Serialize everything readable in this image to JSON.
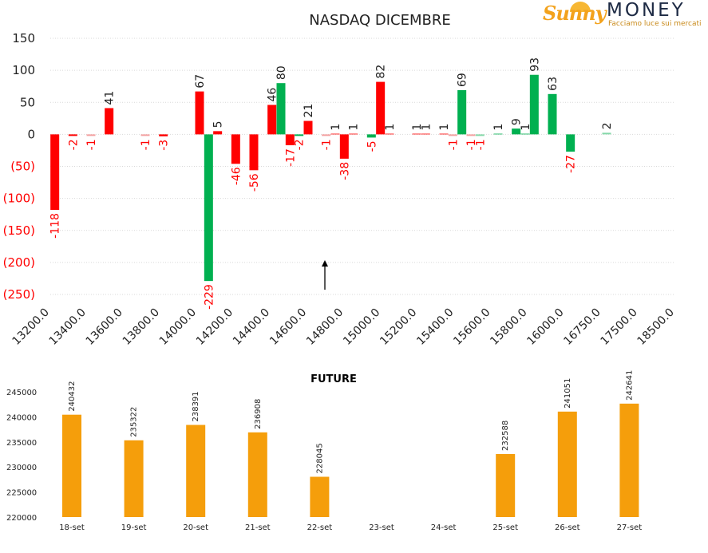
{
  "logo": {
    "brand_part1": "Sunny",
    "brand_part2": "MONEY",
    "tagline": "Facciamo luce sui mercati"
  },
  "colors": {
    "red": "#ff0000",
    "green": "#00b050",
    "light_red": "#f4a0a0",
    "light_green": "#84d8a8",
    "orange": "#f59e0b",
    "grid": "#d9d9d9"
  },
  "chart_data": [
    {
      "type": "bar",
      "title": "NASDAQ DICEMBRE",
      "xlabel": "",
      "ylabel": "",
      "ylim": [
        -250,
        150
      ],
      "yticks": [
        150,
        100,
        50,
        0,
        -50,
        -100,
        -150,
        -200,
        -250
      ],
      "ytick_labels": [
        "150",
        "100",
        "50",
        "0",
        "(50)",
        "(100)",
        "(150)",
        "(200)",
        "(250)"
      ],
      "categories": [
        "13200.0",
        "13400.0",
        "13600.0",
        "13800.0",
        "14000.0",
        "14200.0",
        "14400.0",
        "14600.0",
        "14800.0",
        "15000.0",
        "15200.0",
        "15400.0",
        "15600.0",
        "15800.0",
        "16000.0",
        "16750.0",
        "17500.0",
        "18500.0"
      ],
      "slot_count": 69,
      "grid": true,
      "annotation": "arrow pointing up near 14800",
      "bars": [
        {
          "slot": 0,
          "value": -118,
          "color": "red"
        },
        {
          "slot": 2,
          "value": -2,
          "color": "red"
        },
        {
          "slot": 4,
          "value": -1,
          "color": "light_red"
        },
        {
          "slot": 6,
          "value": 41,
          "color": "red"
        },
        {
          "slot": 10,
          "value": -1,
          "color": "light_red"
        },
        {
          "slot": 12,
          "value": -3,
          "color": "red"
        },
        {
          "slot": 16,
          "value": 67,
          "color": "red"
        },
        {
          "slot": 17,
          "value": -229,
          "color": "green"
        },
        {
          "slot": 18,
          "value": 5,
          "color": "red"
        },
        {
          "slot": 20,
          "value": -46,
          "color": "red"
        },
        {
          "slot": 22,
          "value": -56,
          "color": "red"
        },
        {
          "slot": 24,
          "value": 46,
          "color": "red"
        },
        {
          "slot": 25,
          "value": 80,
          "color": "green"
        },
        {
          "slot": 26,
          "value": -17,
          "color": "red"
        },
        {
          "slot": 27,
          "value": -2,
          "color": "green"
        },
        {
          "slot": 28,
          "value": 21,
          "color": "red"
        },
        {
          "slot": 30,
          "value": -1,
          "color": "light_red"
        },
        {
          "slot": 31,
          "value": 1,
          "color": "red"
        },
        {
          "slot": 32,
          "value": -38,
          "color": "red"
        },
        {
          "slot": 33,
          "value": 1,
          "color": "red"
        },
        {
          "slot": 35,
          "value": -5,
          "color": "green"
        },
        {
          "slot": 36,
          "value": 82,
          "color": "red"
        },
        {
          "slot": 37,
          "value": 1,
          "color": "red"
        },
        {
          "slot": 40,
          "value": 1,
          "color": "red"
        },
        {
          "slot": 41,
          "value": 1,
          "color": "red"
        },
        {
          "slot": 43,
          "value": 1,
          "color": "red"
        },
        {
          "slot": 44,
          "value": -1,
          "color": "light_red"
        },
        {
          "slot": 45,
          "value": 69,
          "color": "green"
        },
        {
          "slot": 46,
          "value": -1,
          "color": "light_red"
        },
        {
          "slot": 47,
          "value": -1,
          "color": "light_green"
        },
        {
          "slot": 49,
          "value": 1,
          "color": "green"
        },
        {
          "slot": 51,
          "value": 9,
          "color": "green"
        },
        {
          "slot": 52,
          "value": 1,
          "color": "green"
        },
        {
          "slot": 53,
          "value": 93,
          "color": "green"
        },
        {
          "slot": 55,
          "value": 63,
          "color": "green"
        },
        {
          "slot": 57,
          "value": -27,
          "color": "green"
        },
        {
          "slot": 61,
          "value": 2,
          "color": "light_green"
        }
      ]
    },
    {
      "type": "bar",
      "title": "FUTURE",
      "xlabel": "",
      "ylabel": "",
      "ylim": [
        220000,
        245000
      ],
      "yticks": [
        "245000",
        "240000",
        "235000",
        "230000",
        "225000",
        "220000"
      ],
      "categories": [
        "18-set",
        "19-set",
        "20-set",
        "21-set",
        "22-set",
        "23-set",
        "24-set",
        "25-set",
        "26-set",
        "27-set"
      ],
      "values": [
        240432,
        235322,
        238391,
        236908,
        228045,
        null,
        null,
        232588,
        241051,
        242641
      ],
      "value_labels": [
        "240432",
        "235322",
        "238391",
        "236908",
        "228045",
        null,
        null,
        "232588",
        "241051",
        "242641"
      ],
      "grid": false
    }
  ]
}
